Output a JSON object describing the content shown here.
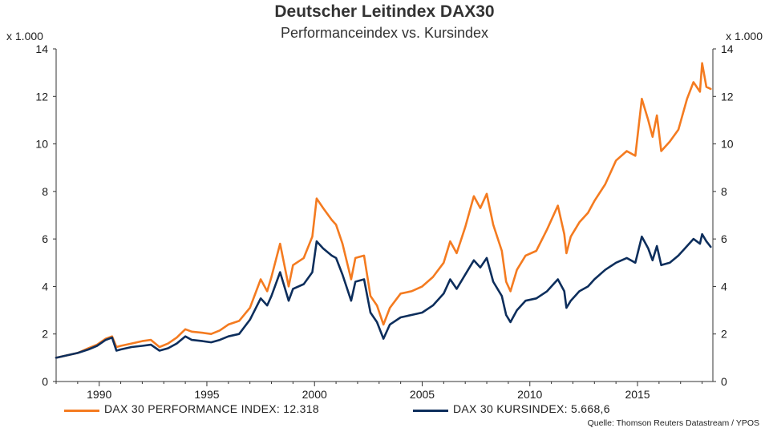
{
  "chart_data": {
    "type": "line",
    "title": "Deutscher Leitindex DAX30",
    "subtitle": "Performanceindex vs. Kursindex",
    "y_unit_left": "x 1.000",
    "y_unit_right": "x 1.000",
    "xlim": [
      1988,
      2018.5
    ],
    "ylim": [
      0,
      14
    ],
    "x_ticks": [
      1990,
      1995,
      2000,
      2005,
      2010,
      2015
    ],
    "y_ticks": [
      0,
      2,
      4,
      6,
      8,
      10,
      12,
      14
    ],
    "series": [
      {
        "name": "DAX 30 PERFORMANCE INDEX: 12.318",
        "color": "#f47b20",
        "points": [
          [
            1988,
            1.0
          ],
          [
            1988.5,
            1.1
          ],
          [
            1989,
            1.2
          ],
          [
            1989.5,
            1.4
          ],
          [
            1989.9,
            1.55
          ],
          [
            1990.3,
            1.8
          ],
          [
            1990.6,
            1.9
          ],
          [
            1990.8,
            1.45
          ],
          [
            1991,
            1.5
          ],
          [
            1991.5,
            1.6
          ],
          [
            1992,
            1.7
          ],
          [
            1992.4,
            1.75
          ],
          [
            1992.8,
            1.45
          ],
          [
            1993.2,
            1.6
          ],
          [
            1993.6,
            1.85
          ],
          [
            1994,
            2.2
          ],
          [
            1994.3,
            2.1
          ],
          [
            1994.8,
            2.05
          ],
          [
            1995.2,
            2.0
          ],
          [
            1995.6,
            2.15
          ],
          [
            1996,
            2.4
          ],
          [
            1996.5,
            2.55
          ],
          [
            1997,
            3.1
          ],
          [
            1997.5,
            4.3
          ],
          [
            1997.8,
            3.8
          ],
          [
            1998,
            4.4
          ],
          [
            1998.4,
            5.8
          ],
          [
            1998.8,
            4.0
          ],
          [
            1999,
            4.9
          ],
          [
            1999.5,
            5.2
          ],
          [
            1999.9,
            6.1
          ],
          [
            2000.1,
            7.7
          ],
          [
            2000.4,
            7.3
          ],
          [
            2000.8,
            6.8
          ],
          [
            2001,
            6.6
          ],
          [
            2001.3,
            5.8
          ],
          [
            2001.7,
            4.3
          ],
          [
            2001.9,
            5.2
          ],
          [
            2002.3,
            5.3
          ],
          [
            2002.6,
            3.6
          ],
          [
            2002.9,
            3.2
          ],
          [
            2003.2,
            2.4
          ],
          [
            2003.5,
            3.1
          ],
          [
            2004,
            3.7
          ],
          [
            2004.5,
            3.8
          ],
          [
            2005,
            4.0
          ],
          [
            2005.5,
            4.4
          ],
          [
            2006,
            5.0
          ],
          [
            2006.3,
            5.9
          ],
          [
            2006.6,
            5.4
          ],
          [
            2007,
            6.5
          ],
          [
            2007.4,
            7.8
          ],
          [
            2007.7,
            7.3
          ],
          [
            2008,
            7.9
          ],
          [
            2008.3,
            6.6
          ],
          [
            2008.7,
            5.5
          ],
          [
            2008.9,
            4.2
          ],
          [
            2009.1,
            3.8
          ],
          [
            2009.4,
            4.7
          ],
          [
            2009.8,
            5.3
          ],
          [
            2010.3,
            5.5
          ],
          [
            2010.8,
            6.4
          ],
          [
            2011.3,
            7.4
          ],
          [
            2011.6,
            6.2
          ],
          [
            2011.7,
            5.4
          ],
          [
            2011.9,
            6.1
          ],
          [
            2012.3,
            6.7
          ],
          [
            2012.7,
            7.1
          ],
          [
            2013,
            7.6
          ],
          [
            2013.5,
            8.3
          ],
          [
            2014,
            9.3
          ],
          [
            2014.5,
            9.7
          ],
          [
            2014.9,
            9.5
          ],
          [
            2015.2,
            11.9
          ],
          [
            2015.5,
            11.0
          ],
          [
            2015.7,
            10.3
          ],
          [
            2015.9,
            11.2
          ],
          [
            2016.1,
            9.7
          ],
          [
            2016.5,
            10.1
          ],
          [
            2016.9,
            10.6
          ],
          [
            2017.3,
            11.9
          ],
          [
            2017.6,
            12.6
          ],
          [
            2017.9,
            12.2
          ],
          [
            2018,
            13.4
          ],
          [
            2018.2,
            12.4
          ],
          [
            2018.4,
            12.318
          ]
        ]
      },
      {
        "name": "DAX 30 KURSINDEX: 5.668,6",
        "color": "#0d2e5c",
        "points": [
          [
            1988,
            1.0
          ],
          [
            1988.5,
            1.1
          ],
          [
            1989,
            1.2
          ],
          [
            1989.5,
            1.35
          ],
          [
            1989.9,
            1.5
          ],
          [
            1990.3,
            1.75
          ],
          [
            1990.6,
            1.85
          ],
          [
            1990.8,
            1.3
          ],
          [
            1991,
            1.35
          ],
          [
            1991.5,
            1.45
          ],
          [
            1992,
            1.5
          ],
          [
            1992.4,
            1.55
          ],
          [
            1992.8,
            1.3
          ],
          [
            1993.2,
            1.4
          ],
          [
            1993.6,
            1.6
          ],
          [
            1994,
            1.9
          ],
          [
            1994.3,
            1.75
          ],
          [
            1994.8,
            1.7
          ],
          [
            1995.2,
            1.65
          ],
          [
            1995.6,
            1.75
          ],
          [
            1996,
            1.9
          ],
          [
            1996.5,
            2.0
          ],
          [
            1997,
            2.6
          ],
          [
            1997.5,
            3.5
          ],
          [
            1997.8,
            3.2
          ],
          [
            1998,
            3.6
          ],
          [
            1998.4,
            4.6
          ],
          [
            1998.8,
            3.4
          ],
          [
            1999,
            3.9
          ],
          [
            1999.5,
            4.1
          ],
          [
            1999.9,
            4.6
          ],
          [
            2000.1,
            5.9
          ],
          [
            2000.4,
            5.6
          ],
          [
            2000.8,
            5.3
          ],
          [
            2001,
            5.2
          ],
          [
            2001.3,
            4.5
          ],
          [
            2001.7,
            3.4
          ],
          [
            2001.9,
            4.2
          ],
          [
            2002.3,
            4.3
          ],
          [
            2002.6,
            2.9
          ],
          [
            2002.9,
            2.5
          ],
          [
            2003.2,
            1.8
          ],
          [
            2003.5,
            2.4
          ],
          [
            2004,
            2.7
          ],
          [
            2004.5,
            2.8
          ],
          [
            2005,
            2.9
          ],
          [
            2005.5,
            3.2
          ],
          [
            2006,
            3.7
          ],
          [
            2006.3,
            4.3
          ],
          [
            2006.6,
            3.9
          ],
          [
            2007,
            4.5
          ],
          [
            2007.4,
            5.1
          ],
          [
            2007.7,
            4.8
          ],
          [
            2008,
            5.2
          ],
          [
            2008.3,
            4.2
          ],
          [
            2008.7,
            3.6
          ],
          [
            2008.9,
            2.8
          ],
          [
            2009.1,
            2.5
          ],
          [
            2009.4,
            3.0
          ],
          [
            2009.8,
            3.4
          ],
          [
            2010.3,
            3.5
          ],
          [
            2010.8,
            3.8
          ],
          [
            2011.3,
            4.3
          ],
          [
            2011.6,
            3.8
          ],
          [
            2011.7,
            3.1
          ],
          [
            2011.9,
            3.4
          ],
          [
            2012.3,
            3.8
          ],
          [
            2012.7,
            4.0
          ],
          [
            2013,
            4.3
          ],
          [
            2013.5,
            4.7
          ],
          [
            2014,
            5.0
          ],
          [
            2014.5,
            5.2
          ],
          [
            2014.9,
            5.0
          ],
          [
            2015.2,
            6.1
          ],
          [
            2015.5,
            5.6
          ],
          [
            2015.7,
            5.1
          ],
          [
            2015.9,
            5.7
          ],
          [
            2016.1,
            4.9
          ],
          [
            2016.5,
            5.0
          ],
          [
            2016.9,
            5.3
          ],
          [
            2017.3,
            5.7
          ],
          [
            2017.6,
            6.0
          ],
          [
            2017.9,
            5.8
          ],
          [
            2018,
            6.2
          ],
          [
            2018.2,
            5.9
          ],
          [
            2018.4,
            5.6686
          ]
        ]
      }
    ]
  },
  "legend": {
    "performance_label": "DAX 30 PERFORMANCE INDEX: 12.318",
    "kurs_label": "DAX 30 KURSINDEX: 5.668,6"
  },
  "source": "Quelle: Thomson Reuters Datastream / YPOS"
}
